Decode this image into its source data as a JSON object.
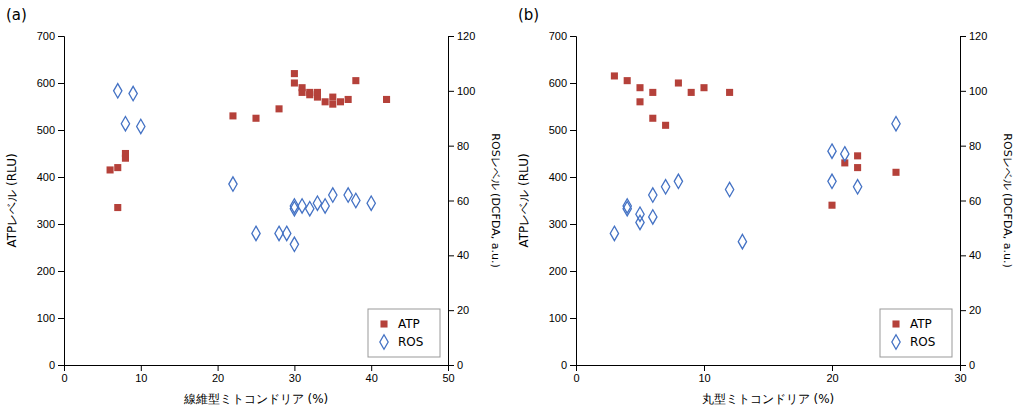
{
  "chart_data": [
    {
      "type": "scatter",
      "title": "(a)",
      "x_label": "線維型ミトコンドリア (%)",
      "y_label": "ATPレベル (RLU)",
      "y2_label": "ROSレベル (DCFDA, a.u.)",
      "xlim": [
        0,
        50
      ],
      "xticks": [
        0,
        10,
        20,
        30,
        40,
        50
      ],
      "ylim": [
        0,
        700
      ],
      "yticks": [
        0,
        100,
        200,
        300,
        400,
        500,
        600,
        700
      ],
      "y2lim": [
        0,
        120
      ],
      "y2ticks": [
        0,
        20,
        40,
        60,
        80,
        100,
        120
      ],
      "grid": false,
      "legend": "lower right",
      "series": [
        {
          "name": "ATP",
          "color": "#b5413a",
          "marker": "square",
          "x": [
            6,
            7,
            7,
            8,
            8,
            22,
            25,
            28,
            30,
            30,
            31,
            31,
            32,
            32,
            33,
            33,
            34,
            35,
            35,
            36,
            37,
            38,
            42
          ],
          "values": [
            415,
            420,
            335,
            440,
            450,
            530,
            525,
            545,
            600,
            620,
            580,
            590,
            575,
            580,
            570,
            580,
            560,
            555,
            570,
            560,
            565,
            605,
            565
          ]
        },
        {
          "name": "ROS",
          "color": "#4472c4",
          "marker": "diamond-open",
          "axis": "y2",
          "x": [
            7,
            8,
            9,
            10,
            22,
            25,
            28,
            29,
            30,
            30,
            30,
            31,
            32,
            33,
            34,
            35,
            37,
            38,
            40
          ],
          "values": [
            100,
            88,
            99,
            87,
            66,
            48,
            48,
            48,
            58,
            57,
            44,
            58,
            57,
            59,
            58,
            62,
            62,
            60,
            59
          ]
        }
      ]
    },
    {
      "type": "scatter",
      "title": "(b)",
      "x_label": "丸型ミトコンドリア (%)",
      "y_label": "ATPレベル (RLU)",
      "y2_label": "ROSレベル (DCFDA, a.u.)",
      "xlim": [
        0,
        30
      ],
      "xticks": [
        0,
        10,
        20,
        30
      ],
      "ylim": [
        0,
        700
      ],
      "yticks": [
        0,
        100,
        200,
        300,
        400,
        500,
        600,
        700
      ],
      "y2lim": [
        0,
        120
      ],
      "y2ticks": [
        0,
        20,
        40,
        60,
        80,
        100,
        120
      ],
      "grid": false,
      "legend": "lower right",
      "series": [
        {
          "name": "ATP",
          "color": "#b5413a",
          "marker": "square",
          "x": [
            3,
            4,
            5,
            5,
            6,
            6,
            7,
            8,
            9,
            10,
            12,
            20,
            21,
            22,
            22,
            25
          ],
          "values": [
            615,
            605,
            590,
            560,
            580,
            525,
            510,
            600,
            580,
            590,
            580,
            340,
            430,
            445,
            420,
            410
          ]
        },
        {
          "name": "ROS",
          "color": "#4472c4",
          "marker": "diamond-open",
          "axis": "y2",
          "x": [
            3,
            4,
            4,
            5,
            5,
            6,
            6,
            7,
            8,
            12,
            13,
            20,
            20,
            21,
            22,
            25
          ],
          "values": [
            48,
            57,
            58,
            55,
            52,
            54,
            62,
            65,
            67,
            64,
            45,
            67,
            78,
            77,
            65,
            88
          ]
        }
      ]
    }
  ]
}
